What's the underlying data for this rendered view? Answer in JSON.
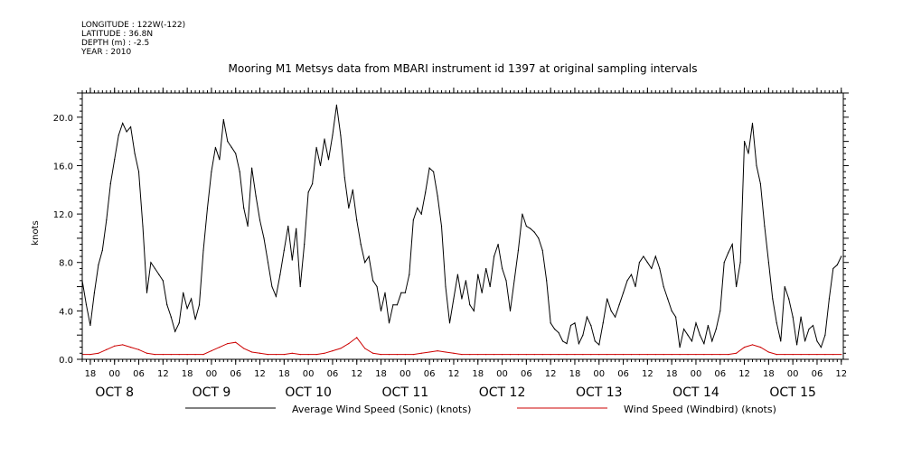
{
  "meta": {
    "longitude": "LONGITUDE : 122W(-122)",
    "latitude": "LATITUDE : 36.8N",
    "depth": "DEPTH (m) : -2.5",
    "year": "YEAR : 2010"
  },
  "chart_data": {
    "type": "line",
    "title": "Mooring M1 Metsys data from MBARI instrument id 1397 at original sampling intervals",
    "ylabel": "knots",
    "xlabel": "",
    "x_unit": "hours since 2010-10-07 16:00",
    "xlim": [
      0,
      188.5
    ],
    "ylim": [
      0,
      22
    ],
    "y_ticks": [
      0.0,
      4.0,
      8.0,
      12.0,
      16.0,
      20.0
    ],
    "y_tick_labels": [
      "0.0",
      "4.0",
      "8.0",
      "12.0",
      "16.0",
      "20.0"
    ],
    "x_ticks": [
      {
        "hour": 2,
        "label": "18"
      },
      {
        "hour": 8,
        "label": "00"
      },
      {
        "hour": 14,
        "label": "06"
      },
      {
        "hour": 20,
        "label": "12"
      },
      {
        "hour": 26,
        "label": "18"
      },
      {
        "hour": 32,
        "label": "00"
      },
      {
        "hour": 38,
        "label": "06"
      },
      {
        "hour": 44,
        "label": "12"
      },
      {
        "hour": 50,
        "label": "18"
      },
      {
        "hour": 56,
        "label": "00"
      },
      {
        "hour": 62,
        "label": "06"
      },
      {
        "hour": 68,
        "label": "12"
      },
      {
        "hour": 74,
        "label": "18"
      },
      {
        "hour": 80,
        "label": "00"
      },
      {
        "hour": 86,
        "label": "06"
      },
      {
        "hour": 92,
        "label": "12"
      },
      {
        "hour": 98,
        "label": "18"
      },
      {
        "hour": 104,
        "label": "00"
      },
      {
        "hour": 110,
        "label": "06"
      },
      {
        "hour": 116,
        "label": "12"
      },
      {
        "hour": 122,
        "label": "18"
      },
      {
        "hour": 128,
        "label": "00"
      },
      {
        "hour": 134,
        "label": "06"
      },
      {
        "hour": 140,
        "label": "12"
      },
      {
        "hour": 146,
        "label": "18"
      },
      {
        "hour": 152,
        "label": "00"
      },
      {
        "hour": 158,
        "label": "06"
      },
      {
        "hour": 164,
        "label": "12"
      },
      {
        "hour": 170,
        "label": "18"
      },
      {
        "hour": 176,
        "label": "00"
      },
      {
        "hour": 182,
        "label": "06"
      },
      {
        "hour": 188,
        "label": "12"
      }
    ],
    "day_labels": [
      {
        "hour": 8,
        "label": "OCT  8"
      },
      {
        "hour": 32,
        "label": "OCT  9"
      },
      {
        "hour": 56,
        "label": "OCT 10"
      },
      {
        "hour": 80,
        "label": "OCT 11"
      },
      {
        "hour": 104,
        "label": "OCT 12"
      },
      {
        "hour": 128,
        "label": "OCT 13"
      },
      {
        "hour": 152,
        "label": "OCT 14"
      },
      {
        "hour": 176,
        "label": "OCT 15"
      }
    ],
    "grid": false,
    "legend_position": "bottom",
    "series": [
      {
        "name": "Average Wind Speed (Sonic) (knots)",
        "color": "#000000",
        "x": [
          0,
          1,
          2,
          3,
          4,
          5,
          6,
          7,
          8,
          9,
          10,
          11,
          12,
          13,
          14,
          15,
          16,
          17,
          18,
          19,
          20,
          21,
          22,
          23,
          24,
          25,
          26,
          27,
          28,
          29,
          30,
          31,
          32,
          33,
          34,
          35,
          36,
          37,
          38,
          39,
          40,
          41,
          42,
          43,
          44,
          45,
          46,
          47,
          48,
          49,
          50,
          51,
          52,
          53,
          54,
          55,
          56,
          57,
          58,
          59,
          60,
          61,
          62,
          63,
          64,
          65,
          66,
          67,
          68,
          69,
          70,
          71,
          72,
          73,
          74,
          75,
          76,
          77,
          78,
          79,
          80,
          81,
          82,
          83,
          84,
          85,
          86,
          87,
          88,
          89,
          90,
          91,
          92,
          93,
          94,
          95,
          96,
          97,
          98,
          99,
          100,
          101,
          102,
          103,
          104,
          105,
          106,
          107,
          108,
          109,
          110,
          111,
          112,
          113,
          114,
          115,
          116,
          117,
          118,
          119,
          120,
          121,
          122,
          123,
          124,
          125,
          126,
          127,
          128,
          129,
          130,
          131,
          132,
          133,
          134,
          135,
          136,
          137,
          138,
          139,
          140,
          141,
          142,
          143,
          144,
          145,
          146,
          147,
          148,
          149,
          150,
          151,
          152,
          153,
          154,
          155,
          156,
          157,
          158,
          159,
          160,
          161,
          162,
          163,
          164,
          165,
          166,
          167,
          168,
          169,
          170,
          171,
          172,
          173,
          174,
          175,
          176,
          177,
          178,
          179,
          180,
          181,
          182,
          183,
          184,
          185,
          186,
          187,
          188
        ],
        "y": [
          6.5,
          4.5,
          2.8,
          5.5,
          7.8,
          9.0,
          11.5,
          14.5,
          16.5,
          18.5,
          19.5,
          18.8,
          19.2,
          17.0,
          15.5,
          11.0,
          5.5,
          8.0,
          7.5,
          7.0,
          6.5,
          4.5,
          3.5,
          2.3,
          3.0,
          5.5,
          4.2,
          5.0,
          3.3,
          4.5,
          9.0,
          12.5,
          15.5,
          17.5,
          16.5,
          19.8,
          18.0,
          17.5,
          17.0,
          15.5,
          12.5,
          11.0,
          15.8,
          13.5,
          11.5,
          10.0,
          8.0,
          6.0,
          5.2,
          7.0,
          9.0,
          11.0,
          8.2,
          10.8,
          6.0,
          9.5,
          13.8,
          14.5,
          17.5,
          16.0,
          18.2,
          16.5,
          18.5,
          21.0,
          18.5,
          15.0,
          12.5,
          14.0,
          11.5,
          9.5,
          8.0,
          8.5,
          6.5,
          6.0,
          4.0,
          5.5,
          3.0,
          4.5,
          4.5,
          5.5,
          5.5,
          7.0,
          11.5,
          12.5,
          12.0,
          13.8,
          15.8,
          15.5,
          13.5,
          11.0,
          6.0,
          3.0,
          5.0,
          7.0,
          5.0,
          6.5,
          4.5,
          4.0,
          7.0,
          5.5,
          7.5,
          6.0,
          8.5,
          9.5,
          7.5,
          6.5,
          4.0,
          6.5,
          9.0,
          12.0,
          11.0,
          10.8,
          10.5,
          10.0,
          9.0,
          6.5,
          3.0,
          2.5,
          2.2,
          1.5,
          1.3,
          2.8,
          3.0,
          1.3,
          2.0,
          3.5,
          2.8,
          1.5,
          1.2,
          3.0,
          5.0,
          4.0,
          3.5,
          4.5,
          5.5,
          6.5,
          7.0,
          6.0,
          8.0,
          8.5,
          8.0,
          7.5,
          8.5,
          7.5,
          6.0,
          5.0,
          4.0,
          3.5,
          1.0,
          2.5,
          2.0,
          1.5,
          3.0,
          2.0,
          1.3,
          2.8,
          1.5,
          2.5,
          4.0,
          8.0,
          8.8,
          9.5,
          6.0,
          8.0,
          18.0,
          17.0,
          19.5,
          16.0,
          14.5,
          11.0,
          8.0,
          5.0,
          3.0,
          1.5,
          6.0,
          5.0,
          3.5,
          1.2,
          3.5,
          1.5,
          2.5,
          2.8,
          1.5,
          1.0,
          2.0,
          5.0,
          7.5,
          7.8,
          8.5
        ]
      },
      {
        "name": "Wind Speed (Windbird) (knots)",
        "color": "#cc0000",
        "x": [
          0,
          2,
          4,
          6,
          8,
          10,
          12,
          14,
          16,
          18,
          20,
          22,
          24,
          26,
          28,
          30,
          32,
          34,
          36,
          38,
          40,
          42,
          44,
          46,
          48,
          50,
          52,
          54,
          56,
          58,
          60,
          62,
          64,
          66,
          68,
          70,
          72,
          74,
          76,
          78,
          80,
          82,
          84,
          86,
          88,
          90,
          92,
          94,
          96,
          98,
          100,
          102,
          104,
          106,
          108,
          110,
          112,
          114,
          116,
          118,
          120,
          122,
          124,
          126,
          128,
          130,
          132,
          134,
          136,
          138,
          140,
          142,
          144,
          146,
          148,
          150,
          152,
          154,
          156,
          158,
          160,
          162,
          164,
          166,
          168,
          170,
          172,
          174,
          176,
          178,
          180,
          182,
          184,
          186,
          188
        ],
        "y": [
          0.4,
          0.4,
          0.5,
          0.8,
          1.1,
          1.2,
          1.0,
          0.8,
          0.5,
          0.4,
          0.4,
          0.4,
          0.4,
          0.4,
          0.4,
          0.4,
          0.7,
          1.0,
          1.3,
          1.4,
          0.9,
          0.6,
          0.5,
          0.4,
          0.4,
          0.4,
          0.5,
          0.4,
          0.4,
          0.4,
          0.5,
          0.7,
          0.9,
          1.3,
          1.8,
          0.9,
          0.5,
          0.4,
          0.4,
          0.4,
          0.4,
          0.4,
          0.5,
          0.6,
          0.7,
          0.6,
          0.5,
          0.4,
          0.4,
          0.4,
          0.4,
          0.4,
          0.4,
          0.4,
          0.4,
          0.4,
          0.4,
          0.4,
          0.4,
          0.4,
          0.4,
          0.4,
          0.4,
          0.4,
          0.4,
          0.4,
          0.4,
          0.4,
          0.4,
          0.4,
          0.4,
          0.4,
          0.4,
          0.4,
          0.4,
          0.4,
          0.4,
          0.4,
          0.4,
          0.4,
          0.4,
          0.5,
          1.0,
          1.2,
          1.0,
          0.6,
          0.4,
          0.4,
          0.4,
          0.4,
          0.4,
          0.4,
          0.4,
          0.4,
          0.4
        ]
      }
    ]
  }
}
